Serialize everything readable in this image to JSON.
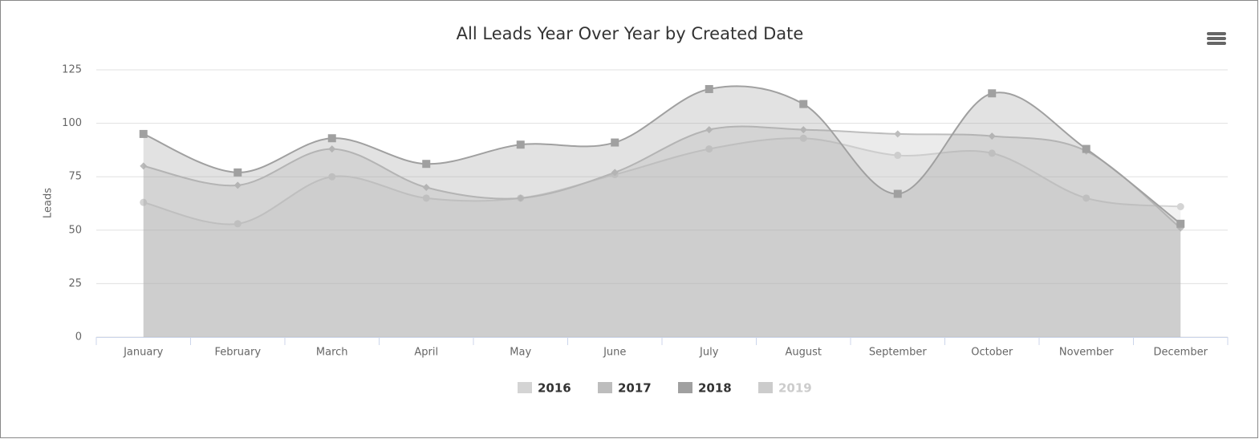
{
  "chart_data": {
    "type": "areaspline",
    "title": "All Leads Year Over Year by Created Date",
    "y_label": "Leads",
    "categories": [
      "January",
      "February",
      "March",
      "April",
      "May",
      "June",
      "July",
      "August",
      "September",
      "October",
      "November",
      "December"
    ],
    "ylim": [
      0,
      125
    ],
    "yticks": [
      0,
      25,
      50,
      75,
      100,
      125
    ],
    "grid": true,
    "legend": "bottom",
    "series": [
      {
        "name": "2016",
        "color": "#d4d4d4",
        "marker": "circle",
        "visible": true,
        "values": [
          63,
          53,
          75,
          65,
          65,
          76,
          88,
          93,
          85,
          86,
          65,
          61
        ]
      },
      {
        "name": "2017",
        "color": "#bdbdbd",
        "marker": "diamond",
        "visible": true,
        "values": [
          80,
          71,
          88,
          70,
          65,
          77,
          97,
          97,
          95,
          94,
          87,
          51
        ]
      },
      {
        "name": "2018",
        "color": "#a0a0a0",
        "marker": "square",
        "visible": true,
        "values": [
          95,
          77,
          93,
          81,
          90,
          91,
          116,
          109,
          67,
          114,
          88,
          53
        ]
      },
      {
        "name": "2019",
        "color": "#cccccc",
        "marker": "circle",
        "visible": false,
        "values": [
          null,
          null,
          null,
          null,
          null,
          null,
          null,
          null,
          null,
          null,
          null,
          null
        ]
      }
    ]
  }
}
